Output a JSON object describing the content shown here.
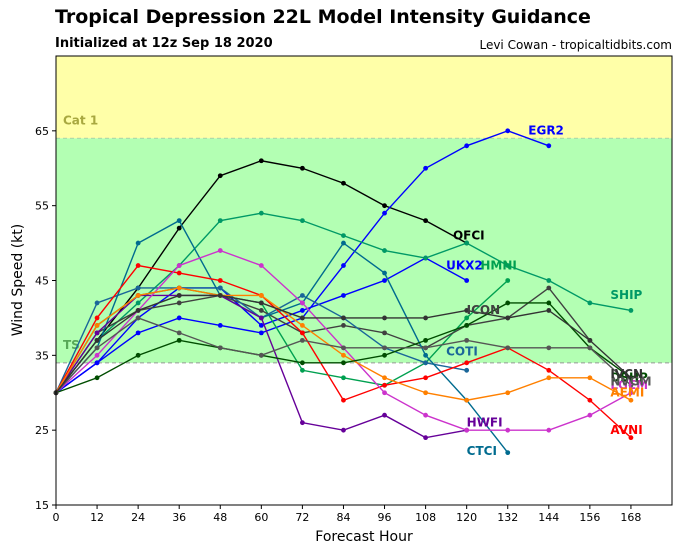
{
  "header": {
    "title": "Tropical Depression 22L Model Intensity Guidance",
    "subtitle": "Initialized at 12z Sep 18 2020",
    "credit": "Levi Cowan - tropicaltidbits.com"
  },
  "chart_data": {
    "type": "line",
    "xlabel": "Forecast Hour",
    "ylabel": "Wind Speed (kt)",
    "xlim": [
      0,
      180
    ],
    "ylim": [
      15,
      75
    ],
    "xticks": [
      0,
      12,
      24,
      36,
      48,
      60,
      72,
      84,
      96,
      108,
      120,
      132,
      144,
      156,
      168
    ],
    "yticks": [
      15,
      25,
      35,
      45,
      55,
      65
    ],
    "grid": false,
    "bands": [
      {
        "from": 64,
        "to": 75,
        "color": "#ffffa8",
        "label": "Cat 1",
        "label_color": "#a8a840"
      },
      {
        "from": 34,
        "to": 64,
        "color": "#b3ffb3",
        "label": "TS",
        "label_color": "#57a857"
      }
    ],
    "series": [
      {
        "name": "OFCI",
        "color": "#000000",
        "label_at": [
          116,
          50.5
        ],
        "x": [
          0,
          12,
          24,
          36,
          48,
          60,
          72,
          84,
          96,
          108,
          120
        ],
        "y": [
          30,
          37,
          44,
          52,
          59,
          61,
          60,
          58,
          55,
          53,
          50
        ]
      },
      {
        "name": "EGR2",
        "color": "#0000ff",
        "label_at": [
          138,
          64.5
        ],
        "x": [
          0,
          12,
          24,
          36,
          48,
          60,
          72,
          84,
          96,
          108,
          120,
          132,
          144
        ],
        "y": [
          30,
          34,
          38,
          40,
          39,
          38,
          40,
          47,
          54,
          60,
          63,
          65,
          63
        ]
      },
      {
        "name": "UKX2",
        "color": "#0000ff",
        "label_at": [
          114,
          46.5
        ],
        "x": [
          0,
          12,
          24,
          36,
          48,
          60,
          72,
          84,
          96,
          108,
          120
        ],
        "y": [
          30,
          34,
          40,
          44,
          44,
          39,
          41,
          43,
          45,
          48,
          45
        ]
      },
      {
        "name": "HMNI",
        "color": "#00a050",
        "label_at": [
          124,
          46.5
        ],
        "x": [
          0,
          12,
          24,
          36,
          48,
          60,
          72,
          84,
          96,
          108,
          120,
          132
        ],
        "y": [
          30,
          39,
          43,
          44,
          43,
          42,
          33,
          32,
          31,
          34,
          40,
          45
        ]
      },
      {
        "name": "SHIP",
        "color": "#009966",
        "label_at": [
          162,
          42.5
        ],
        "x": [
          0,
          12,
          24,
          36,
          48,
          60,
          72,
          84,
          96,
          108,
          120,
          132,
          144,
          156,
          168
        ],
        "y": [
          30,
          37,
          42,
          47,
          53,
          54,
          53,
          51,
          49,
          48,
          50,
          47,
          45,
          42,
          41
        ]
      },
      {
        "name": "ICON",
        "color": "#404040",
        "label_at": [
          120,
          40.5
        ],
        "x": [
          0,
          12,
          24,
          36,
          48,
          60,
          72,
          84,
          96,
          108,
          120,
          132,
          144,
          156
        ],
        "y": [
          30,
          38,
          41,
          42,
          43,
          41,
          38,
          39,
          38,
          36,
          39,
          40,
          44,
          37
        ]
      },
      {
        "name": "COTI",
        "color": "#1a6699",
        "label_at": [
          114,
          35
        ],
        "x": [
          0,
          12,
          24,
          36,
          48,
          60,
          72,
          84,
          96,
          108,
          120
        ],
        "y": [
          30,
          42,
          44,
          44,
          44,
          40,
          43,
          40,
          36,
          34,
          33
        ]
      },
      {
        "name": "CTCI",
        "color": "#006b8f",
        "label_at": [
          120,
          21.7
        ],
        "x": [
          0,
          12,
          24,
          36,
          48,
          60,
          72,
          84,
          96,
          108,
          120,
          132
        ],
        "y": [
          30,
          36,
          50,
          53,
          43,
          40,
          42,
          50,
          46,
          35,
          29,
          22
        ]
      },
      {
        "name": "HWFI",
        "color": "#660099",
        "label_at": [
          120,
          25.5
        ],
        "x": [
          0,
          12,
          24,
          36,
          48,
          60,
          72,
          84,
          96,
          108,
          120
        ],
        "y": [
          30,
          38,
          43,
          43,
          43,
          40,
          26,
          25,
          27,
          24,
          25
        ]
      },
      {
        "name": "AVNI",
        "color": "#ff0000",
        "label_at": [
          162,
          24.5
        ],
        "x": [
          0,
          12,
          24,
          36,
          48,
          60,
          72,
          84,
          96,
          108,
          120,
          132,
          144,
          156,
          168
        ],
        "y": [
          30,
          40,
          47,
          46,
          45,
          43,
          38,
          29,
          31,
          32,
          34,
          36,
          33,
          29,
          24
        ]
      },
      {
        "name": "LGEM",
        "color": "#cc33cc",
        "label_at": [
          162,
          30.5
        ],
        "x": [
          0,
          12,
          24,
          36,
          48,
          60,
          72,
          84,
          96,
          108,
          120,
          132,
          144,
          156,
          168
        ],
        "y": [
          30,
          35,
          41,
          47,
          49,
          47,
          42,
          36,
          30,
          27,
          25,
          25,
          25,
          27,
          30
        ]
      },
      {
        "name": "AEMI",
        "color": "#ff8000",
        "label_at": [
          162,
          29.5
        ],
        "x": [
          0,
          12,
          24,
          36,
          48,
          60,
          72,
          84,
          96,
          108,
          120,
          132,
          144,
          156,
          168
        ],
        "y": [
          30,
          39,
          43,
          44,
          43,
          43,
          39,
          35,
          32,
          30,
          29,
          30,
          32,
          32,
          29
        ]
      },
      {
        "name": "DSHP",
        "color": "#004d00",
        "label_at": [
          162,
          31.5
        ],
        "x": [
          0,
          12,
          24,
          36,
          48,
          60,
          72,
          84,
          96,
          108,
          120,
          132,
          144,
          156,
          168
        ],
        "y": [
          30,
          32,
          35,
          37,
          36,
          35,
          34,
          34,
          35,
          37,
          39,
          42,
          42,
          36,
          32
        ]
      },
      {
        "name": "NVGM",
        "color": "#555555",
        "label_at": [
          162,
          31
        ],
        "x": [
          0,
          12,
          24,
          36,
          48,
          60,
          72,
          84,
          96,
          108,
          120,
          132,
          144,
          156,
          168
        ],
        "y": [
          30,
          36,
          40,
          38,
          36,
          35,
          37,
          36,
          36,
          36,
          37,
          36,
          36,
          36,
          31
        ]
      },
      {
        "name": "IVCN",
        "color": "#333333",
        "label_at": [
          162,
          32
        ],
        "x": [
          0,
          12,
          24,
          36,
          48,
          60,
          72,
          84,
          96,
          108,
          120,
          132,
          144,
          156,
          168
        ],
        "y": [
          30,
          37,
          41,
          43,
          43,
          42,
          40,
          40,
          40,
          40,
          41,
          40,
          41,
          37,
          32
        ]
      }
    ]
  }
}
